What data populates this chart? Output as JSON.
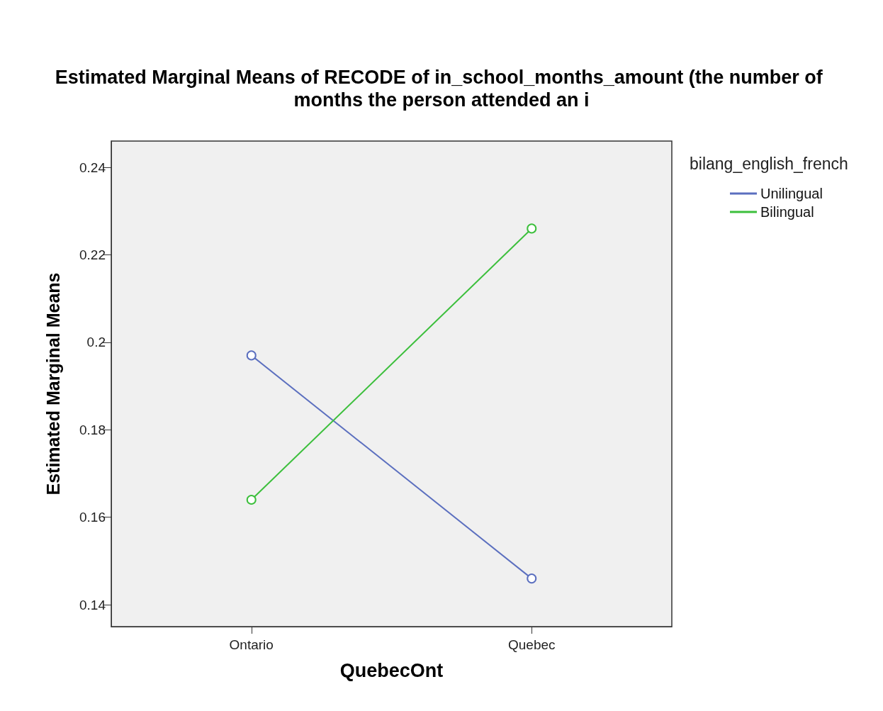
{
  "chart_data": {
    "type": "line",
    "title": "Estimated Marginal Means of RECODE of in_school_months_amount (the number of months the person attended an i",
    "xlabel": "QuebecOnt",
    "ylabel": "Estimated Marginal Means",
    "legend_title": "bilang_english_french",
    "categories": [
      "Ontario",
      "Quebec"
    ],
    "series": [
      {
        "name": "Unilingual",
        "color": "#5b6fbf",
        "values": [
          0.197,
          0.146
        ]
      },
      {
        "name": "Bilingual",
        "color": "#3cbf3c",
        "values": [
          0.164,
          0.226
        ]
      }
    ],
    "ylim": [
      0.135,
      0.246
    ],
    "yticks": [
      0.14,
      0.16,
      0.18,
      0.2,
      0.22,
      0.24
    ],
    "grid": false,
    "legend": "top right",
    "marker": "circle",
    "line_style": "solid"
  }
}
